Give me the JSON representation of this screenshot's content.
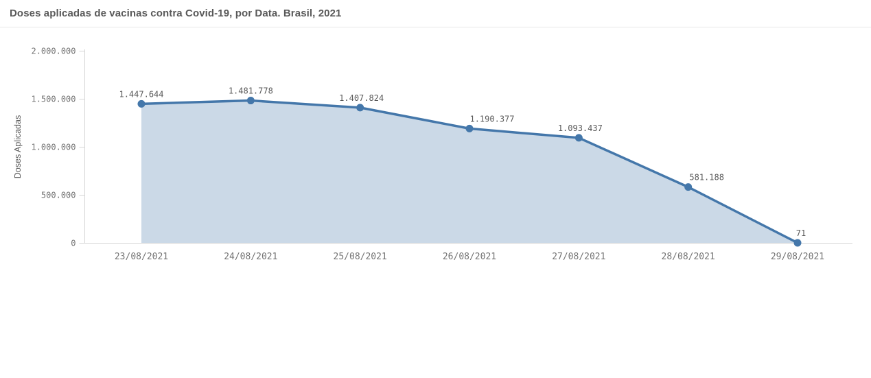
{
  "header": {
    "title": "Doses aplicadas de vacinas contra Covid-19, por Data. Brasil, 2021"
  },
  "chart_data": {
    "type": "area",
    "title": "Doses aplicadas de vacinas contra Covid-19, por Data. Brasil, 2021",
    "categories": [
      "23/08/2021",
      "24/08/2021",
      "25/08/2021",
      "26/08/2021",
      "27/08/2021",
      "28/08/2021",
      "29/08/2021"
    ],
    "values": [
      1447644,
      1481778,
      1407824,
      1190377,
      1093437,
      581188,
      71
    ],
    "value_labels": [
      "1.447.644",
      "1.481.778",
      "1.407.824",
      "1.190.377",
      "1.093.437",
      "581.188",
      "71"
    ],
    "xlabel": "",
    "ylabel": "Doses Aplicadas",
    "ylim": [
      0,
      2000000
    ],
    "y_ticks": [
      {
        "value": 0,
        "label": "0"
      },
      {
        "value": 500000,
        "label": "500.000"
      },
      {
        "value": 1000000,
        "label": "1.000.000"
      },
      {
        "value": 1500000,
        "label": "1.500.000"
      },
      {
        "value": 2000000,
        "label": "2.000.000"
      }
    ],
    "grid": false,
    "legend": "none",
    "label_dx": [
      0,
      0,
      2,
      33,
      2,
      27,
      5
    ],
    "colors": {
      "line": "#4477aa",
      "marker": "#4477aa",
      "fill": "rgba(68,119,170,0.28)",
      "axis": "#d6d6d6",
      "tick_text": "#737373",
      "data_label_text": "#595959",
      "title_text": "#595959",
      "divider": "#e7e7e7"
    }
  }
}
